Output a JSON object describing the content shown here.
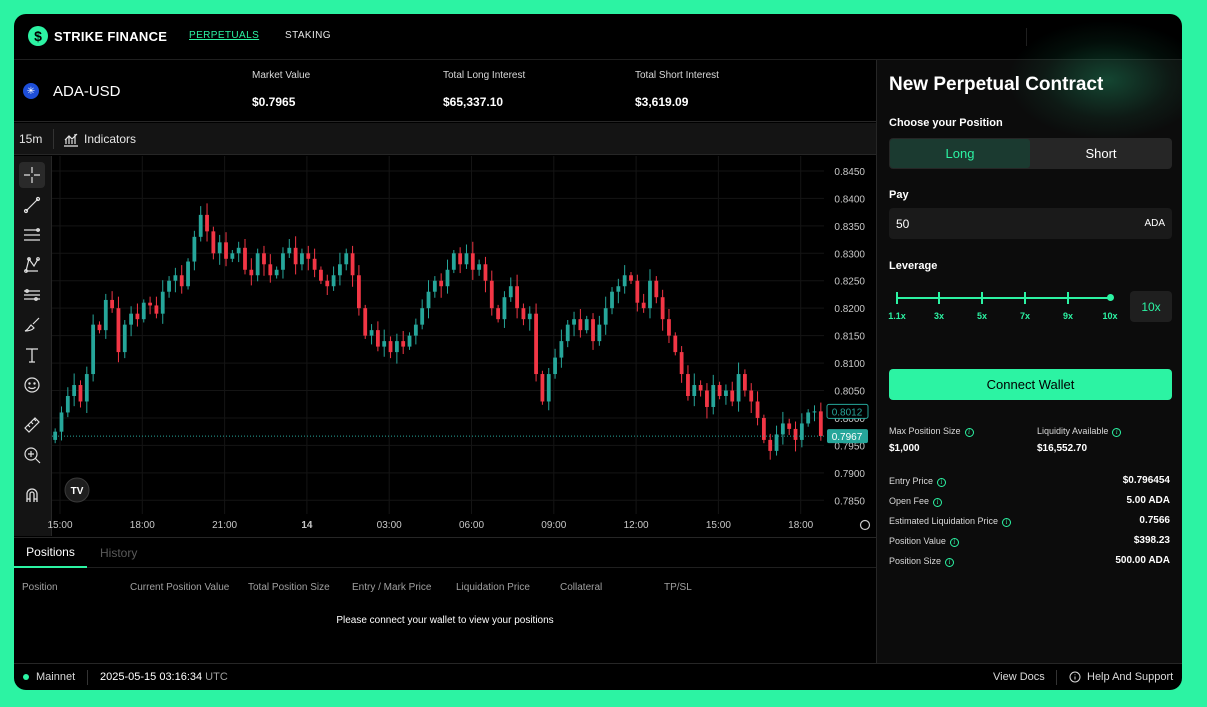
{
  "header": {
    "brand": "STRIKE FINANCE",
    "nav": {
      "perpetuals": "PERPETUALS",
      "staking": "STAKING"
    }
  },
  "market": {
    "asset": "ADA-USD",
    "stats": [
      {
        "label": "Market Value",
        "value": "$0.7965"
      },
      {
        "label": "Total Long Interest",
        "value": "$65,337.10"
      },
      {
        "label": "Total Short Interest",
        "value": "$3,619.09"
      }
    ]
  },
  "chart_toolbar": {
    "timeframe": "15m",
    "indicators_label": "Indicators"
  },
  "tools": [
    "crosshair-icon",
    "trend-line-icon",
    "fib-retracement-icon",
    "pattern-icon",
    "prediction-icon",
    "brush-icon",
    "text-icon",
    "emoji-icon",
    "ruler-icon",
    "zoom-in-icon",
    "magnet-icon"
  ],
  "chart_data": {
    "type": "candlestick",
    "interval": "15m",
    "price_axis": [
      "0.8450",
      "0.8400",
      "0.8350",
      "0.8300",
      "0.8250",
      "0.8200",
      "0.8150",
      "0.8100",
      "0.8050",
      "0.8000",
      "0.7950",
      "0.7900",
      "0.7850"
    ],
    "time_axis": [
      "15:00",
      "18:00",
      "21:00",
      "14",
      "03:00",
      "06:00",
      "09:00",
      "12:00",
      "15:00",
      "18:00"
    ],
    "ylim": [
      0.7825,
      0.847
    ],
    "last_price_label": "0.7967",
    "prev_close_label": "0.8012",
    "colors": {
      "up": "#26a69a",
      "down": "#f23645",
      "grid": "#141414"
    },
    "closes": [
      0.7975,
      0.801,
      0.804,
      0.806,
      0.803,
      0.808,
      0.817,
      0.816,
      0.8215,
      0.82,
      0.812,
      0.817,
      0.819,
      0.818,
      0.821,
      0.8205,
      0.819,
      0.823,
      0.825,
      0.826,
      0.824,
      0.8285,
      0.833,
      0.837,
      0.834,
      0.83,
      0.832,
      0.829,
      0.83,
      0.831,
      0.827,
      0.826,
      0.83,
      0.828,
      0.826,
      0.827,
      0.83,
      0.831,
      0.828,
      0.83,
      0.829,
      0.827,
      0.825,
      0.824,
      0.826,
      0.828,
      0.83,
      0.826,
      0.82,
      0.815,
      0.816,
      0.813,
      0.814,
      0.812,
      0.814,
      0.813,
      0.815,
      0.817,
      0.82,
      0.823,
      0.825,
      0.824,
      0.827,
      0.83,
      0.828,
      0.83,
      0.827,
      0.828,
      0.825,
      0.82,
      0.818,
      0.822,
      0.824,
      0.82,
      0.818,
      0.819,
      0.808,
      0.803,
      0.808,
      0.811,
      0.814,
      0.817,
      0.818,
      0.816,
      0.818,
      0.814,
      0.817,
      0.82,
      0.823,
      0.824,
      0.826,
      0.825,
      0.821,
      0.82,
      0.825,
      0.822,
      0.818,
      0.815,
      0.812,
      0.808,
      0.804,
      0.806,
      0.805,
      0.802,
      0.806,
      0.804,
      0.805,
      0.803,
      0.808,
      0.805,
      0.803,
      0.8,
      0.796,
      0.794,
      0.797,
      0.799,
      0.798,
      0.796,
      0.799,
      0.801,
      0.8012,
      0.7967
    ]
  },
  "positions": {
    "tabs": {
      "positions": "Positions",
      "history": "History"
    },
    "columns": [
      "Position",
      "Current Position Value",
      "Total Position Size",
      "Entry / Mark Price",
      "Liquidation Price",
      "Collateral",
      "TP/SL"
    ],
    "empty_message": "Please connect your wallet to view your positions"
  },
  "footer": {
    "network": "Mainnet",
    "timestamp": "2025-05-15 03:16:34",
    "timezone": "UTC",
    "docs": "View Docs",
    "help": "Help And Support"
  },
  "panel": {
    "title": "New Perpetual Contract",
    "choose_label": "Choose your Position",
    "long": "Long",
    "short": "Short",
    "pay_label": "Pay",
    "pay_value": "50",
    "pay_unit": "ADA",
    "leverage_label": "Leverage",
    "leverage_marks": [
      "1.1x",
      "3x",
      "5x",
      "7x",
      "9x",
      "10x"
    ],
    "leverage_value": "10x",
    "connect": "Connect Wallet",
    "max_position_label": "Max Position Size",
    "max_position_value": "$1,000",
    "liquidity_label": "Liquidity Available",
    "liquidity_value": "$16,552.70",
    "details": [
      {
        "label": "Entry Price",
        "value": "$0.796454"
      },
      {
        "label": "Open Fee",
        "value": "5.00 ADA"
      },
      {
        "label": "Estimated Liquidation Price",
        "value": "0.7566"
      },
      {
        "label": "Position Value",
        "value": "$398.23"
      },
      {
        "label": "Position Size",
        "value": "500.00 ADA"
      }
    ]
  }
}
